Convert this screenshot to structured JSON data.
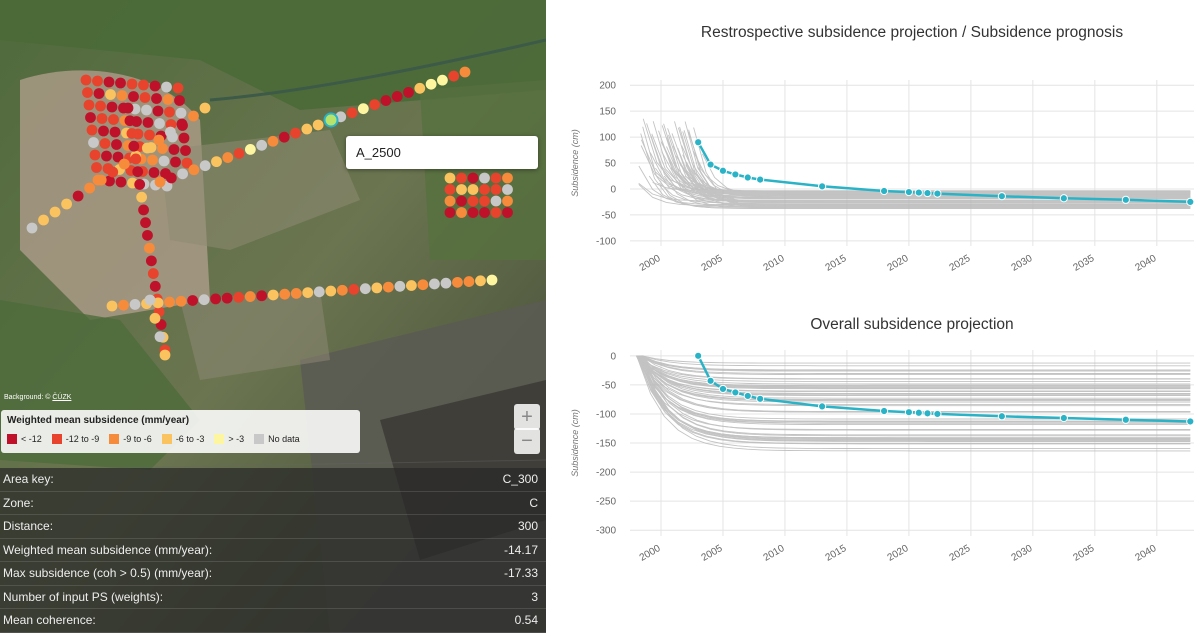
{
  "map": {
    "tooltip_label": "A_2500",
    "attribution_prefix": "Background: © ",
    "attribution_link": "ČÚZK",
    "zoom_in": "+",
    "zoom_out": "−",
    "legend": {
      "title": "Weighted mean subsidence (mm/year)",
      "items": [
        {
          "label": "< -12",
          "color": "#c0112a"
        },
        {
          "label": "-12 to -9",
          "color": "#e8432c"
        },
        {
          "label": "-9 to -6",
          "color": "#f78b3c"
        },
        {
          "label": "-6 to -3",
          "color": "#fac35f"
        },
        {
          "label": "> -3",
          "color": "#fdf5a0"
        },
        {
          "label": "No data",
          "color": "#c8c8c8"
        }
      ]
    }
  },
  "info": [
    {
      "label": "Area key:",
      "value": "C_300"
    },
    {
      "label": "Zone:",
      "value": "C"
    },
    {
      "label": "Distance:",
      "value": "300"
    },
    {
      "label": "Weighted mean subsidence (mm/year):",
      "value": "-14.17"
    },
    {
      "label": "Max subsidence (coh > 0.5) (mm/year):",
      "value": "-17.33"
    },
    {
      "label": "Number of input PS (weights):",
      "value": "3"
    },
    {
      "label": "Mean coherence:",
      "value": "0.54"
    }
  ],
  "chart_data": [
    {
      "type": "line",
      "title": "Restrospective subsidence projection / Subsidence prognosis",
      "ylabel": "Subsidence (cm)",
      "xlim": [
        1997.5,
        2043
      ],
      "ylim": [
        -110,
        210
      ],
      "xticks": [
        "2000",
        "2005",
        "2010",
        "2015",
        "2020",
        "2025",
        "2030",
        "2035",
        "2040"
      ],
      "yticks": [
        "200",
        "150",
        "100",
        "50",
        "0",
        "-50",
        "-100"
      ],
      "highlight_color": "#2ab3c6",
      "series": [
        {
          "x": [
            2003,
            2004,
            2005,
            2006,
            2007,
            2008,
            2013,
            2018,
            2020,
            2020.8,
            2021.5,
            2022.3,
            2027.5,
            2032.5,
            2037.5,
            2042.7
          ],
          "y": [
            90,
            47,
            35,
            28,
            22,
            18,
            5,
            -4,
            -6,
            -7,
            -8,
            -9,
            -14,
            -18,
            -21,
            -25
          ]
        }
      ]
    },
    {
      "type": "line",
      "title": "Overall subsidence projection",
      "ylabel": "Subsidence (cm)",
      "xlim": [
        1997.5,
        2043
      ],
      "ylim": [
        -310,
        10
      ],
      "xticks": [
        "2000",
        "2005",
        "2010",
        "2015",
        "2020",
        "2025",
        "2030",
        "2035",
        "2040"
      ],
      "yticks": [
        "0",
        "-50",
        "-100",
        "-150",
        "-200",
        "-250",
        "-300"
      ],
      "highlight_color": "#2ab3c6",
      "series": [
        {
          "x": [
            2003,
            2004,
            2005,
            2006,
            2007,
            2008,
            2013,
            2018,
            2020,
            2020.8,
            2021.5,
            2022.3,
            2027.5,
            2032.5,
            2037.5,
            2042.7
          ],
          "y": [
            0,
            -43,
            -57,
            -63,
            -69,
            -74,
            -87,
            -95,
            -97,
            -98,
            -99,
            -100,
            -104,
            -107,
            -110,
            -113
          ]
        }
      ]
    }
  ]
}
